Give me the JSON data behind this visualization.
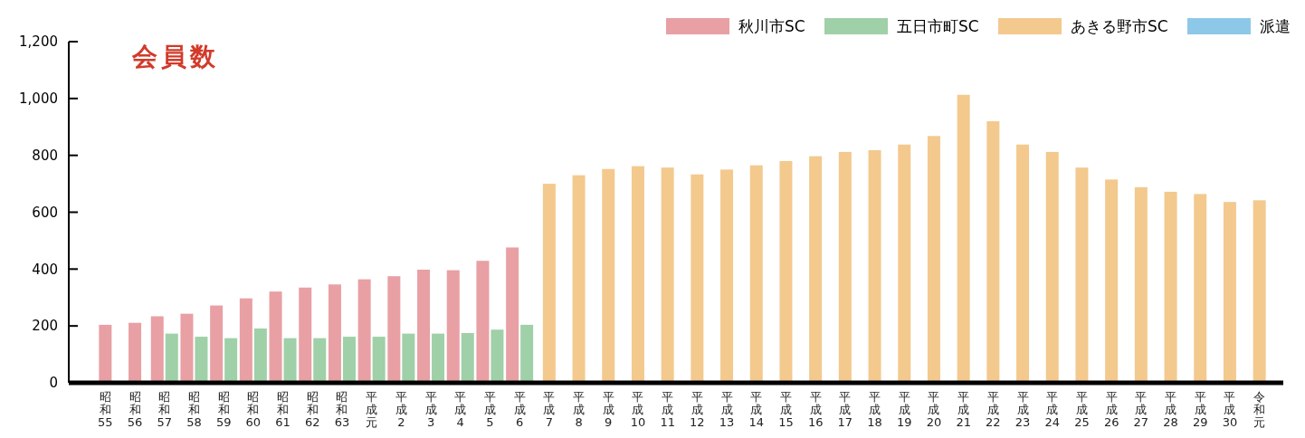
{
  "chart_data": {
    "type": "bar",
    "title": "会員数",
    "categories": [
      "昭和55",
      "昭和56",
      "昭和57",
      "昭和58",
      "昭和59",
      "昭和60",
      "昭和61",
      "昭和62",
      "昭和63",
      "平成元",
      "平成2",
      "平成3",
      "平成4",
      "平成5",
      "平成6",
      "平成7",
      "平成8",
      "平成9",
      "平成10",
      "平成11",
      "平成12",
      "平成13",
      "平成14",
      "平成15",
      "平成16",
      "平成17",
      "平成18",
      "平成19",
      "平成20",
      "平成21",
      "平成22",
      "平成23",
      "平成24",
      "平成25",
      "平成26",
      "平成27",
      "平成28",
      "平成29",
      "平成30",
      "令和元"
    ],
    "series": [
      {
        "name": "秋川市SC",
        "color": "#e8a0a4",
        "values": [
          204,
          211,
          234,
          243,
          272,
          297,
          321,
          335,
          346,
          364,
          375,
          398,
          396,
          429,
          476,
          null,
          null,
          null,
          null,
          null,
          null,
          null,
          null,
          null,
          null,
          null,
          null,
          null,
          null,
          null,
          null,
          null,
          null,
          null,
          null,
          null,
          null,
          null,
          null,
          null
        ]
      },
      {
        "name": "五日市町SC",
        "color": "#9fd0a8",
        "values": [
          null,
          null,
          173,
          162,
          157,
          191,
          157,
          157,
          162,
          162,
          173,
          173,
          175,
          187,
          204,
          null,
          null,
          null,
          null,
          null,
          null,
          null,
          null,
          null,
          null,
          null,
          null,
          null,
          null,
          null,
          null,
          null,
          null,
          null,
          null,
          null,
          null,
          null,
          null,
          null
        ]
      },
      {
        "name": "あきる野市SC",
        "color": "#f3c98e",
        "values": [
          null,
          null,
          null,
          null,
          null,
          null,
          null,
          null,
          null,
          null,
          null,
          null,
          null,
          null,
          null,
          700,
          730,
          752,
          762,
          757,
          733,
          750,
          765,
          780,
          797,
          812,
          818,
          838,
          868,
          1013,
          920,
          838,
          812,
          757,
          715,
          688,
          672,
          664,
          636,
          642
        ]
      },
      {
        "name": "派遣",
        "color": "#8ec8e8",
        "values": [
          null,
          null,
          null,
          null,
          null,
          null,
          null,
          null,
          null,
          null,
          null,
          null,
          null,
          null,
          null,
          null,
          null,
          null,
          null,
          null,
          null,
          null,
          null,
          null,
          null,
          null,
          null,
          null,
          null,
          null,
          null,
          null,
          null,
          null,
          null,
          null,
          null,
          null,
          null,
          null
        ]
      }
    ],
    "ylim": [
      0,
      1200
    ],
    "yticks": [
      0,
      200,
      400,
      600,
      800,
      {
        "value": 1000,
        "label": "1,000"
      },
      {
        "value": 1200,
        "label": "1,200"
      }
    ],
    "legend": "top right",
    "grid": false
  }
}
